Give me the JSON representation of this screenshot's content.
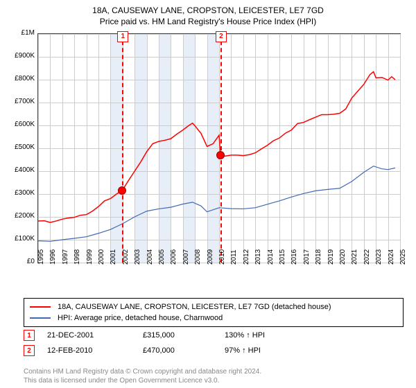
{
  "title": "18A, CAUSEWAY LANE, CROPSTON, LEICESTER, LE7 7GD",
  "subtitle": "Price paid vs. HM Land Registry's House Price Index (HPI)",
  "chart": {
    "plot_background": "#ffffff",
    "grid_color": "#cccccc",
    "border_color": "#444444",
    "axis_fontsize": 10,
    "y": {
      "min": 0,
      "max": 1000000,
      "tick_step": 100000,
      "prefix": "£",
      "tick_labels": [
        "£0",
        "£100K",
        "£200K",
        "£300K",
        "£400K",
        "£500K",
        "£600K",
        "£700K",
        "£800K",
        "£900K",
        "£1M"
      ]
    },
    "x": {
      "years": [
        1995,
        1996,
        1997,
        1998,
        1999,
        2000,
        2001,
        2002,
        2003,
        2004,
        2005,
        2006,
        2007,
        2008,
        2009,
        2010,
        2011,
        2012,
        2013,
        2014,
        2015,
        2016,
        2017,
        2018,
        2019,
        2020,
        2021,
        2022,
        2023,
        2024,
        2025
      ]
    },
    "shade_bands": [
      {
        "from": 2001,
        "to": 2002,
        "color": "#e8eef7"
      },
      {
        "from": 2003,
        "to": 2004,
        "color": "#e8eef7"
      },
      {
        "from": 2005,
        "to": 2006,
        "color": "#e8eef7"
      },
      {
        "from": 2007,
        "to": 2008,
        "color": "#e8eef7"
      },
      {
        "from": 2009,
        "to": 2010,
        "color": "#e8eef7"
      }
    ],
    "series": [
      {
        "name": "18A, CAUSEWAY LANE, CROPSTON, LEICESTER, LE7 7GD (detached house)",
        "color": "#ff0000",
        "width": 1.5,
        "points": [
          [
            1995.0,
            182000
          ],
          [
            1995.5,
            183000
          ],
          [
            1996.0,
            176000
          ],
          [
            1996.5,
            182000
          ],
          [
            1997.0,
            190000
          ],
          [
            1997.5,
            195000
          ],
          [
            1998.0,
            198000
          ],
          [
            1998.5,
            207000
          ],
          [
            1999.0,
            210000
          ],
          [
            1999.5,
            225000
          ],
          [
            2000.0,
            245000
          ],
          [
            2000.5,
            270000
          ],
          [
            2001.0,
            280000
          ],
          [
            2001.5,
            300000
          ],
          [
            2001.97,
            315000
          ],
          [
            2002.5,
            360000
          ],
          [
            2003.0,
            400000
          ],
          [
            2003.5,
            440000
          ],
          [
            2004.0,
            485000
          ],
          [
            2004.5,
            520000
          ],
          [
            2005.0,
            530000
          ],
          [
            2005.5,
            535000
          ],
          [
            2006.0,
            542000
          ],
          [
            2006.5,
            562000
          ],
          [
            2007.0,
            580000
          ],
          [
            2007.5,
            600000
          ],
          [
            2007.8,
            610000
          ],
          [
            2008.0,
            598000
          ],
          [
            2008.5,
            565000
          ],
          [
            2009.0,
            508000
          ],
          [
            2009.5,
            520000
          ],
          [
            2010.0,
            557000
          ],
          [
            2010.11,
            470000
          ],
          [
            2010.5,
            466000
          ],
          [
            2011.0,
            470000
          ],
          [
            2011.5,
            470000
          ],
          [
            2012.0,
            468000
          ],
          [
            2012.5,
            472000
          ],
          [
            2013.0,
            480000
          ],
          [
            2013.5,
            497000
          ],
          [
            2014.0,
            513000
          ],
          [
            2014.5,
            533000
          ],
          [
            2015.0,
            545000
          ],
          [
            2015.5,
            566000
          ],
          [
            2016.0,
            580000
          ],
          [
            2016.5,
            608000
          ],
          [
            2017.0,
            613000
          ],
          [
            2017.5,
            625000
          ],
          [
            2018.0,
            636000
          ],
          [
            2018.5,
            647000
          ],
          [
            2019.0,
            647000
          ],
          [
            2019.5,
            649000
          ],
          [
            2020.0,
            653000
          ],
          [
            2020.5,
            672000
          ],
          [
            2021.0,
            720000
          ],
          [
            2021.5,
            750000
          ],
          [
            2022.0,
            780000
          ],
          [
            2022.5,
            822000
          ],
          [
            2022.8,
            835000
          ],
          [
            2023.0,
            808000
          ],
          [
            2023.5,
            810000
          ],
          [
            2024.0,
            798000
          ],
          [
            2024.3,
            813000
          ],
          [
            2024.6,
            800000
          ]
        ]
      },
      {
        "name": "HPI: Average price, detached house, Charnwood",
        "color": "#4169b2",
        "width": 1.2,
        "points": [
          [
            1995.0,
            95000
          ],
          [
            1996.0,
            93000
          ],
          [
            1997.0,
            100000
          ],
          [
            1998.0,
            106000
          ],
          [
            1999.0,
            113000
          ],
          [
            2000.0,
            128000
          ],
          [
            2001.0,
            145000
          ],
          [
            2002.0,
            170000
          ],
          [
            2003.0,
            200000
          ],
          [
            2004.0,
            225000
          ],
          [
            2005.0,
            235000
          ],
          [
            2006.0,
            242000
          ],
          [
            2007.0,
            256000
          ],
          [
            2007.8,
            264000
          ],
          [
            2008.5,
            248000
          ],
          [
            2009.0,
            222000
          ],
          [
            2010.0,
            240000
          ],
          [
            2011.0,
            236000
          ],
          [
            2012.0,
            235000
          ],
          [
            2013.0,
            240000
          ],
          [
            2014.0,
            255000
          ],
          [
            2015.0,
            270000
          ],
          [
            2016.0,
            287000
          ],
          [
            2017.0,
            302000
          ],
          [
            2018.0,
            314000
          ],
          [
            2019.0,
            320000
          ],
          [
            2020.0,
            325000
          ],
          [
            2021.0,
            355000
          ],
          [
            2022.0,
            395000
          ],
          [
            2022.8,
            422000
          ],
          [
            2023.5,
            410000
          ],
          [
            2024.0,
            407000
          ],
          [
            2024.6,
            414000
          ]
        ]
      }
    ],
    "sale_markers": [
      {
        "flag": "1",
        "year": 2001.97,
        "value": 315000
      },
      {
        "flag": "2",
        "year": 2010.11,
        "value": 470000
      }
    ]
  },
  "legend": {
    "series1_label": "18A, CAUSEWAY LANE, CROPSTON, LEICESTER, LE7 7GD (detached house)",
    "series2_label": "HPI: Average price, detached house, Charnwood"
  },
  "sales": [
    {
      "flag": "1",
      "date": "21-DEC-2001",
      "price": "£315,000",
      "hpi": "130% ↑ HPI"
    },
    {
      "flag": "2",
      "date": "12-FEB-2010",
      "price": "£470,000",
      "hpi": "97% ↑ HPI"
    }
  ],
  "footer": {
    "line1": "Contains HM Land Registry data © Crown copyright and database right 2024.",
    "line2": "This data is licensed under the Open Government Licence v3.0."
  }
}
